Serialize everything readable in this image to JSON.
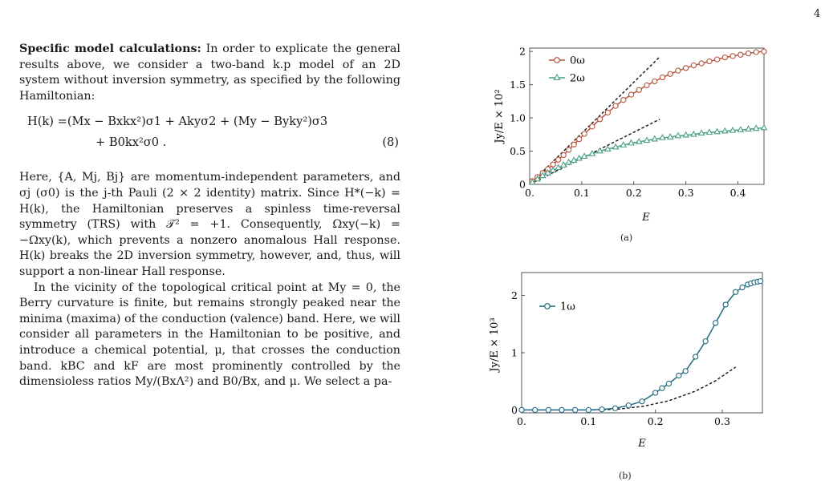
{
  "page_number": "4",
  "text": {
    "heading": "Specific model calculations:",
    "p1_rest": " In order to explicate the general results above, we consider a two-band k.p model of an 2D system without inversion symmetry, as specified by the following Hamiltonian:",
    "eq_line1": "H(k) =(Mx − Bxkx²)σ1 + Akyσ2 + (My − Byky²)σ3",
    "eq_line2": "+ B0kx²σ0 .",
    "eq_number": "(8)",
    "p2": "Here, {A, Mj, Bj} are momentum-independent parameters, and σj (σ0) is the j-th Pauli (2 × 2 identity) matrix. Since H*(−k) = H(k), the Hamiltonian preserves a spinless time-reversal symmetry (TRS) with 𝒯² = +1. Consequently, Ωxy(−k) = −Ωxy(k), which prevents a nonzero anomalous Hall response. H(k) breaks the 2D inversion symmetry, however, and, thus, will support a non-linear Hall response.",
    "p3": "In the vicinity of the topological critical point at My = 0, the Berry curvature is finite, but remains strongly peaked near the minima (maxima) of the conduction (valence) band. Here, we will consider all parameters in the Hamiltonian to be positive, and introduce a chemical potential, μ, that crosses the conduction band. kBC and kF are most prominently controlled by the dimensioless ratios My/(BxΛ²) and B0/Bx, and μ. We select a pa-"
  },
  "figure_a": {
    "caption": "(a)",
    "ylabel": "Jy/E × 10²",
    "xlabel": "E",
    "legend": [
      "0ω",
      "2ω"
    ],
    "colors": {
      "0w": "#b5533c",
      "2w": "#4a9e86"
    }
  },
  "figure_b": {
    "caption": "(b)",
    "ylabel": "Jy/E × 10³",
    "xlabel": "E",
    "legend": [
      "1ω"
    ],
    "colors": {
      "1w": "#1f6a80"
    }
  },
  "chart_data": [
    {
      "type": "line",
      "xlabel": "E",
      "ylabel": "Jy/E × 10²",
      "xlim": [
        0,
        0.45
      ],
      "ylim": [
        0,
        2.05
      ],
      "xticks": [
        "0.",
        "0.1",
        "0.2",
        "0.3",
        "0.4"
      ],
      "yticks": [
        "0",
        "0.5",
        "1.0",
        "1.5",
        "2"
      ],
      "legend_position": "top-left",
      "series": [
        {
          "name": "0ω",
          "marker": "circle",
          "x": [
            0.005,
            0.015,
            0.025,
            0.035,
            0.045,
            0.055,
            0.065,
            0.075,
            0.085,
            0.095,
            0.105,
            0.12,
            0.135,
            0.15,
            0.165,
            0.18,
            0.195,
            0.21,
            0.225,
            0.24,
            0.255,
            0.27,
            0.285,
            0.3,
            0.315,
            0.33,
            0.345,
            0.36,
            0.375,
            0.39,
            0.405,
            0.42,
            0.435,
            0.45
          ],
          "y": [
            0.05,
            0.11,
            0.17,
            0.23,
            0.3,
            0.37,
            0.44,
            0.52,
            0.6,
            0.68,
            0.76,
            0.87,
            0.98,
            1.08,
            1.18,
            1.27,
            1.35,
            1.42,
            1.49,
            1.55,
            1.61,
            1.66,
            1.71,
            1.75,
            1.79,
            1.82,
            1.85,
            1.88,
            1.91,
            1.93,
            1.95,
            1.97,
            1.99,
            2.0
          ]
        },
        {
          "name": "2ω",
          "marker": "triangle",
          "x": [
            0.005,
            0.015,
            0.025,
            0.035,
            0.045,
            0.055,
            0.065,
            0.075,
            0.085,
            0.095,
            0.105,
            0.12,
            0.135,
            0.15,
            0.165,
            0.18,
            0.195,
            0.21,
            0.225,
            0.24,
            0.255,
            0.27,
            0.285,
            0.3,
            0.315,
            0.33,
            0.345,
            0.36,
            0.375,
            0.39,
            0.405,
            0.42,
            0.435,
            0.45
          ],
          "y": [
            0.03,
            0.08,
            0.13,
            0.17,
            0.21,
            0.25,
            0.29,
            0.33,
            0.36,
            0.39,
            0.42,
            0.46,
            0.5,
            0.53,
            0.56,
            0.59,
            0.62,
            0.64,
            0.66,
            0.68,
            0.7,
            0.71,
            0.73,
            0.74,
            0.75,
            0.77,
            0.78,
            0.79,
            0.8,
            0.81,
            0.82,
            0.83,
            0.84,
            0.85
          ]
        },
        {
          "name": "",
          "style": "dashed",
          "x": [
            0,
            0.25
          ],
          "y": [
            0,
            1.92
          ]
        },
        {
          "name": "",
          "style": "dashed",
          "x": [
            0,
            0.25
          ],
          "y": [
            0,
            0.98
          ]
        }
      ]
    },
    {
      "type": "line",
      "xlabel": "E",
      "ylabel": "Jy/E × 10³",
      "xlim": [
        0,
        0.36
      ],
      "ylim": [
        -0.05,
        2.4
      ],
      "xticks": [
        "0.",
        "0.1",
        "0.2",
        "0.3"
      ],
      "yticks": [
        "0",
        "1",
        "2"
      ],
      "legend_position": "top-left",
      "series": [
        {
          "name": "1ω",
          "marker": "circle",
          "x": [
            0,
            0.02,
            0.04,
            0.06,
            0.08,
            0.1,
            0.12,
            0.14,
            0.16,
            0.18,
            0.2,
            0.21,
            0.22,
            0.235,
            0.245,
            0.26,
            0.275,
            0.29,
            0.305,
            0.32,
            0.33,
            0.338,
            0.343,
            0.348,
            0.353,
            0.357
          ],
          "y": [
            0,
            0,
            0,
            0,
            0,
            0,
            0.01,
            0.03,
            0.08,
            0.15,
            0.3,
            0.38,
            0.46,
            0.6,
            0.68,
            0.93,
            1.2,
            1.52,
            1.84,
            2.06,
            2.14,
            2.19,
            2.21,
            2.23,
            2.24,
            2.25
          ]
        },
        {
          "name": "",
          "style": "dashed",
          "x": [
            0.1,
            0.14,
            0.18,
            0.22,
            0.26,
            0.29,
            0.32
          ],
          "y": [
            0,
            0.01,
            0.06,
            0.16,
            0.33,
            0.51,
            0.75
          ]
        }
      ]
    }
  ]
}
